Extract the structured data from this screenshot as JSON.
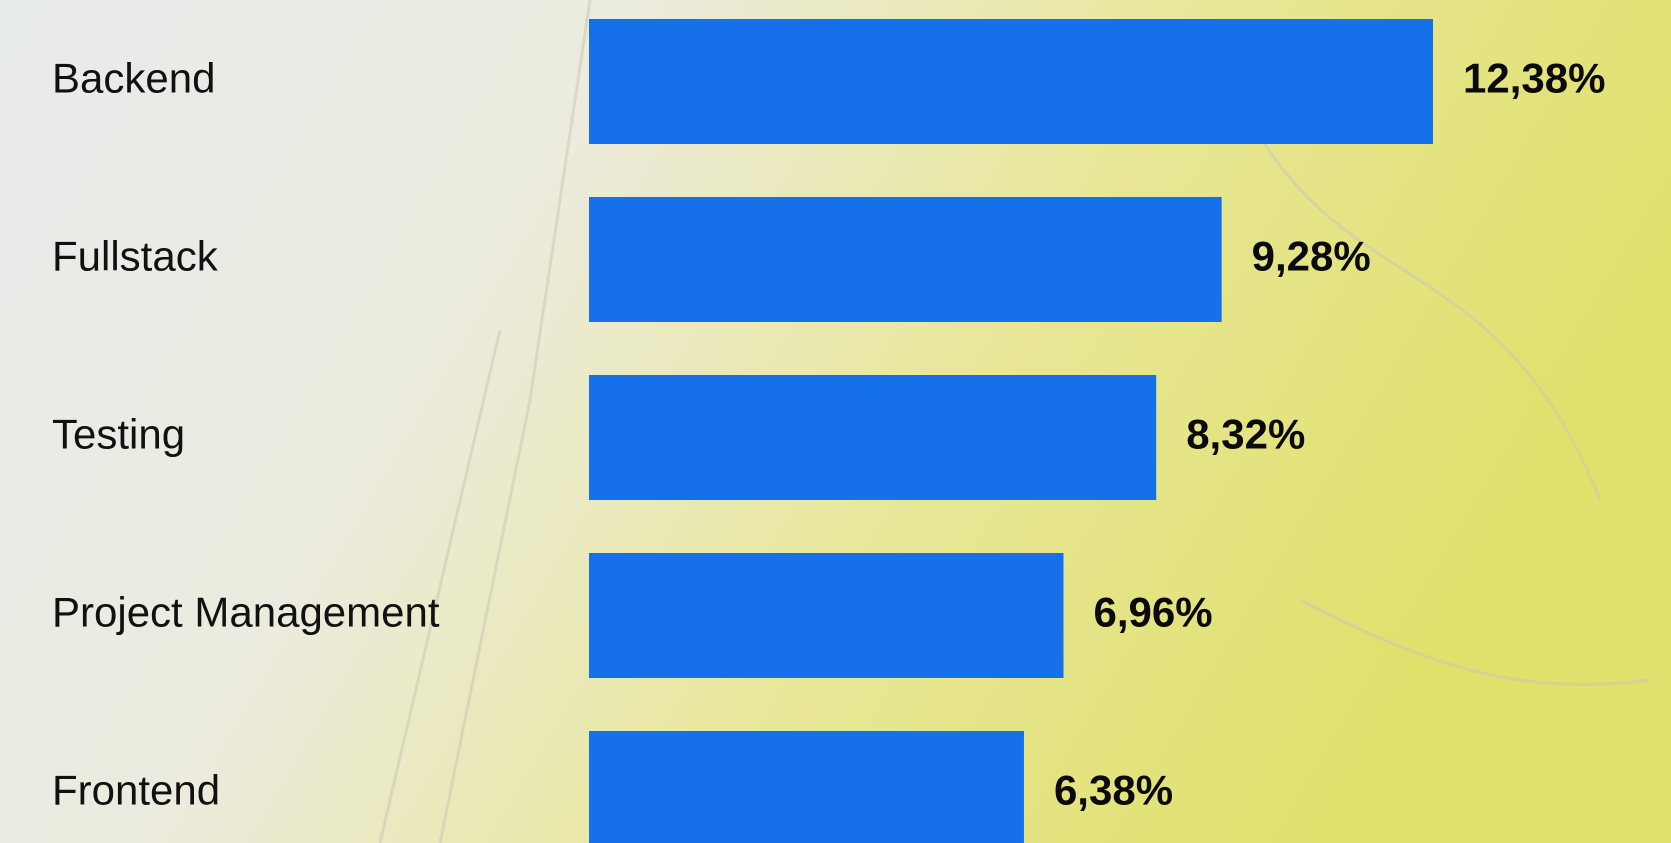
{
  "chart_data": {
    "type": "barh",
    "categories": [
      "Backend",
      "Fullstack",
      "Testing",
      "Project Management",
      "Frontend"
    ],
    "values": [
      12.38,
      9.28,
      8.32,
      6.96,
      6.38
    ],
    "value_labels": [
      "12,38%",
      "9,28%",
      "8,32%",
      "6,96%",
      "6,38%"
    ],
    "color": "#1570ea"
  }
}
